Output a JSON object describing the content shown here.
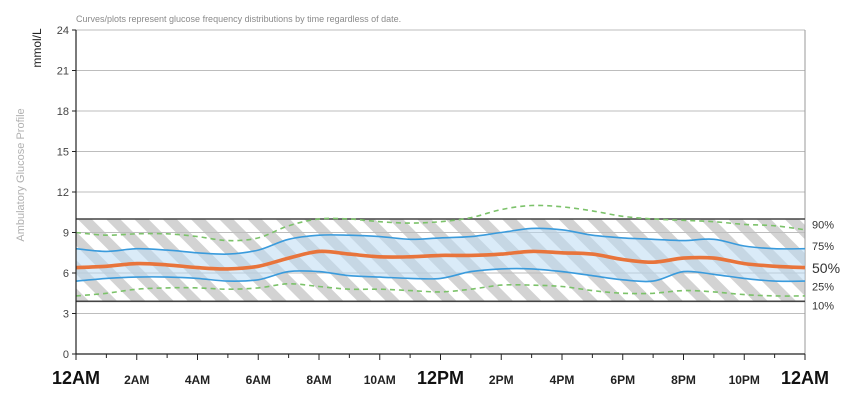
{
  "chart_data": {
    "type": "line",
    "title": "Curves/plots represent glucose frequency distributions by time regardless of date.",
    "ylabel": "mmol/L",
    "side_label": "Ambulatory Glucose Profile",
    "ylim": [
      0,
      24
    ],
    "yticks": [
      0,
      3,
      6,
      9,
      12,
      15,
      18,
      21,
      24
    ],
    "xlim": [
      0,
      24
    ],
    "xticks": [
      {
        "h": 0,
        "label": "12AM",
        "big": true
      },
      {
        "h": 2,
        "label": "2AM",
        "big": false
      },
      {
        "h": 4,
        "label": "4AM",
        "big": false
      },
      {
        "h": 6,
        "label": "6AM",
        "big": false
      },
      {
        "h": 8,
        "label": "8AM",
        "big": false
      },
      {
        "h": 10,
        "label": "10AM",
        "big": false
      },
      {
        "h": 12,
        "label": "12PM",
        "big": true
      },
      {
        "h": 14,
        "label": "2PM",
        "big": false
      },
      {
        "h": 16,
        "label": "4PM",
        "big": false
      },
      {
        "h": 18,
        "label": "6PM",
        "big": false
      },
      {
        "h": 20,
        "label": "8PM",
        "big": false
      },
      {
        "h": 22,
        "label": "10PM",
        "big": false
      },
      {
        "h": 24,
        "label": "12AM",
        "big": true
      }
    ],
    "target_range": [
      3.9,
      10.0
    ],
    "x": [
      0,
      1,
      2,
      3,
      4,
      5,
      6,
      7,
      8,
      9,
      10,
      11,
      12,
      13,
      14,
      15,
      16,
      17,
      18,
      19,
      20,
      21,
      22,
      23,
      24
    ],
    "series": [
      {
        "name": "90%",
        "label": "90%",
        "style": "dashed",
        "color": "#7cc26a",
        "values": [
          9.0,
          8.8,
          8.9,
          8.9,
          8.7,
          8.4,
          8.6,
          9.5,
          10.0,
          10.0,
          9.8,
          9.7,
          9.8,
          10.1,
          10.7,
          11.0,
          10.9,
          10.6,
          10.2,
          10.0,
          9.9,
          9.8,
          9.6,
          9.5,
          9.2
        ]
      },
      {
        "name": "75%",
        "label": "75%",
        "style": "solid",
        "color": "#3a9bdc",
        "values": [
          7.8,
          7.6,
          7.8,
          7.7,
          7.5,
          7.4,
          7.7,
          8.5,
          8.8,
          8.8,
          8.7,
          8.5,
          8.6,
          8.7,
          9.0,
          9.3,
          9.2,
          8.8,
          8.6,
          8.5,
          8.4,
          8.5,
          8.0,
          7.8,
          7.8
        ]
      },
      {
        "name": "50%",
        "label": "50%",
        "style": "bold",
        "color": "#e8743b",
        "values": [
          6.4,
          6.5,
          6.7,
          6.6,
          6.4,
          6.3,
          6.5,
          7.1,
          7.6,
          7.4,
          7.2,
          7.2,
          7.3,
          7.3,
          7.4,
          7.6,
          7.5,
          7.4,
          7.0,
          6.8,
          7.1,
          7.1,
          6.7,
          6.5,
          6.4
        ]
      },
      {
        "name": "25%",
        "label": "25%",
        "style": "solid",
        "color": "#3a9bdc",
        "values": [
          5.4,
          5.6,
          5.7,
          5.7,
          5.6,
          5.4,
          5.5,
          6.1,
          6.1,
          5.8,
          5.7,
          5.6,
          5.6,
          6.1,
          6.3,
          6.3,
          6.1,
          5.8,
          5.5,
          5.4,
          6.1,
          5.9,
          5.6,
          5.4,
          5.4
        ]
      },
      {
        "name": "10%",
        "label": "10%",
        "style": "dashed",
        "color": "#7cc26a",
        "values": [
          4.3,
          4.5,
          4.8,
          4.9,
          4.9,
          4.8,
          4.9,
          5.2,
          5.0,
          4.8,
          4.8,
          4.7,
          4.6,
          4.8,
          5.1,
          5.1,
          5.0,
          4.7,
          4.5,
          4.5,
          4.7,
          4.6,
          4.4,
          4.3,
          4.3
        ]
      }
    ]
  }
}
